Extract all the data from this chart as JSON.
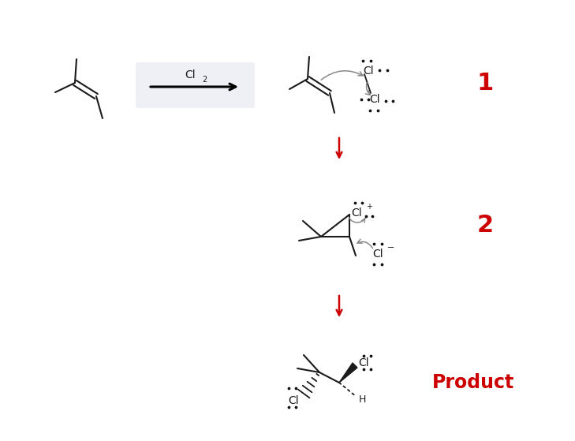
{
  "bg_color": "#ffffff",
  "arrow_box_color": "#eef0f5",
  "label_color": "#cc0000",
  "down_arrow_color": "#cc0000",
  "bond_color": "#1a1a1a",
  "dots_color": "#111111",
  "gray_arrow_color": "#888888",
  "reagent": "Cl",
  "reagent_sub": "2",
  "step1_label": "1",
  "step2_label": "2",
  "product_label": "Product"
}
